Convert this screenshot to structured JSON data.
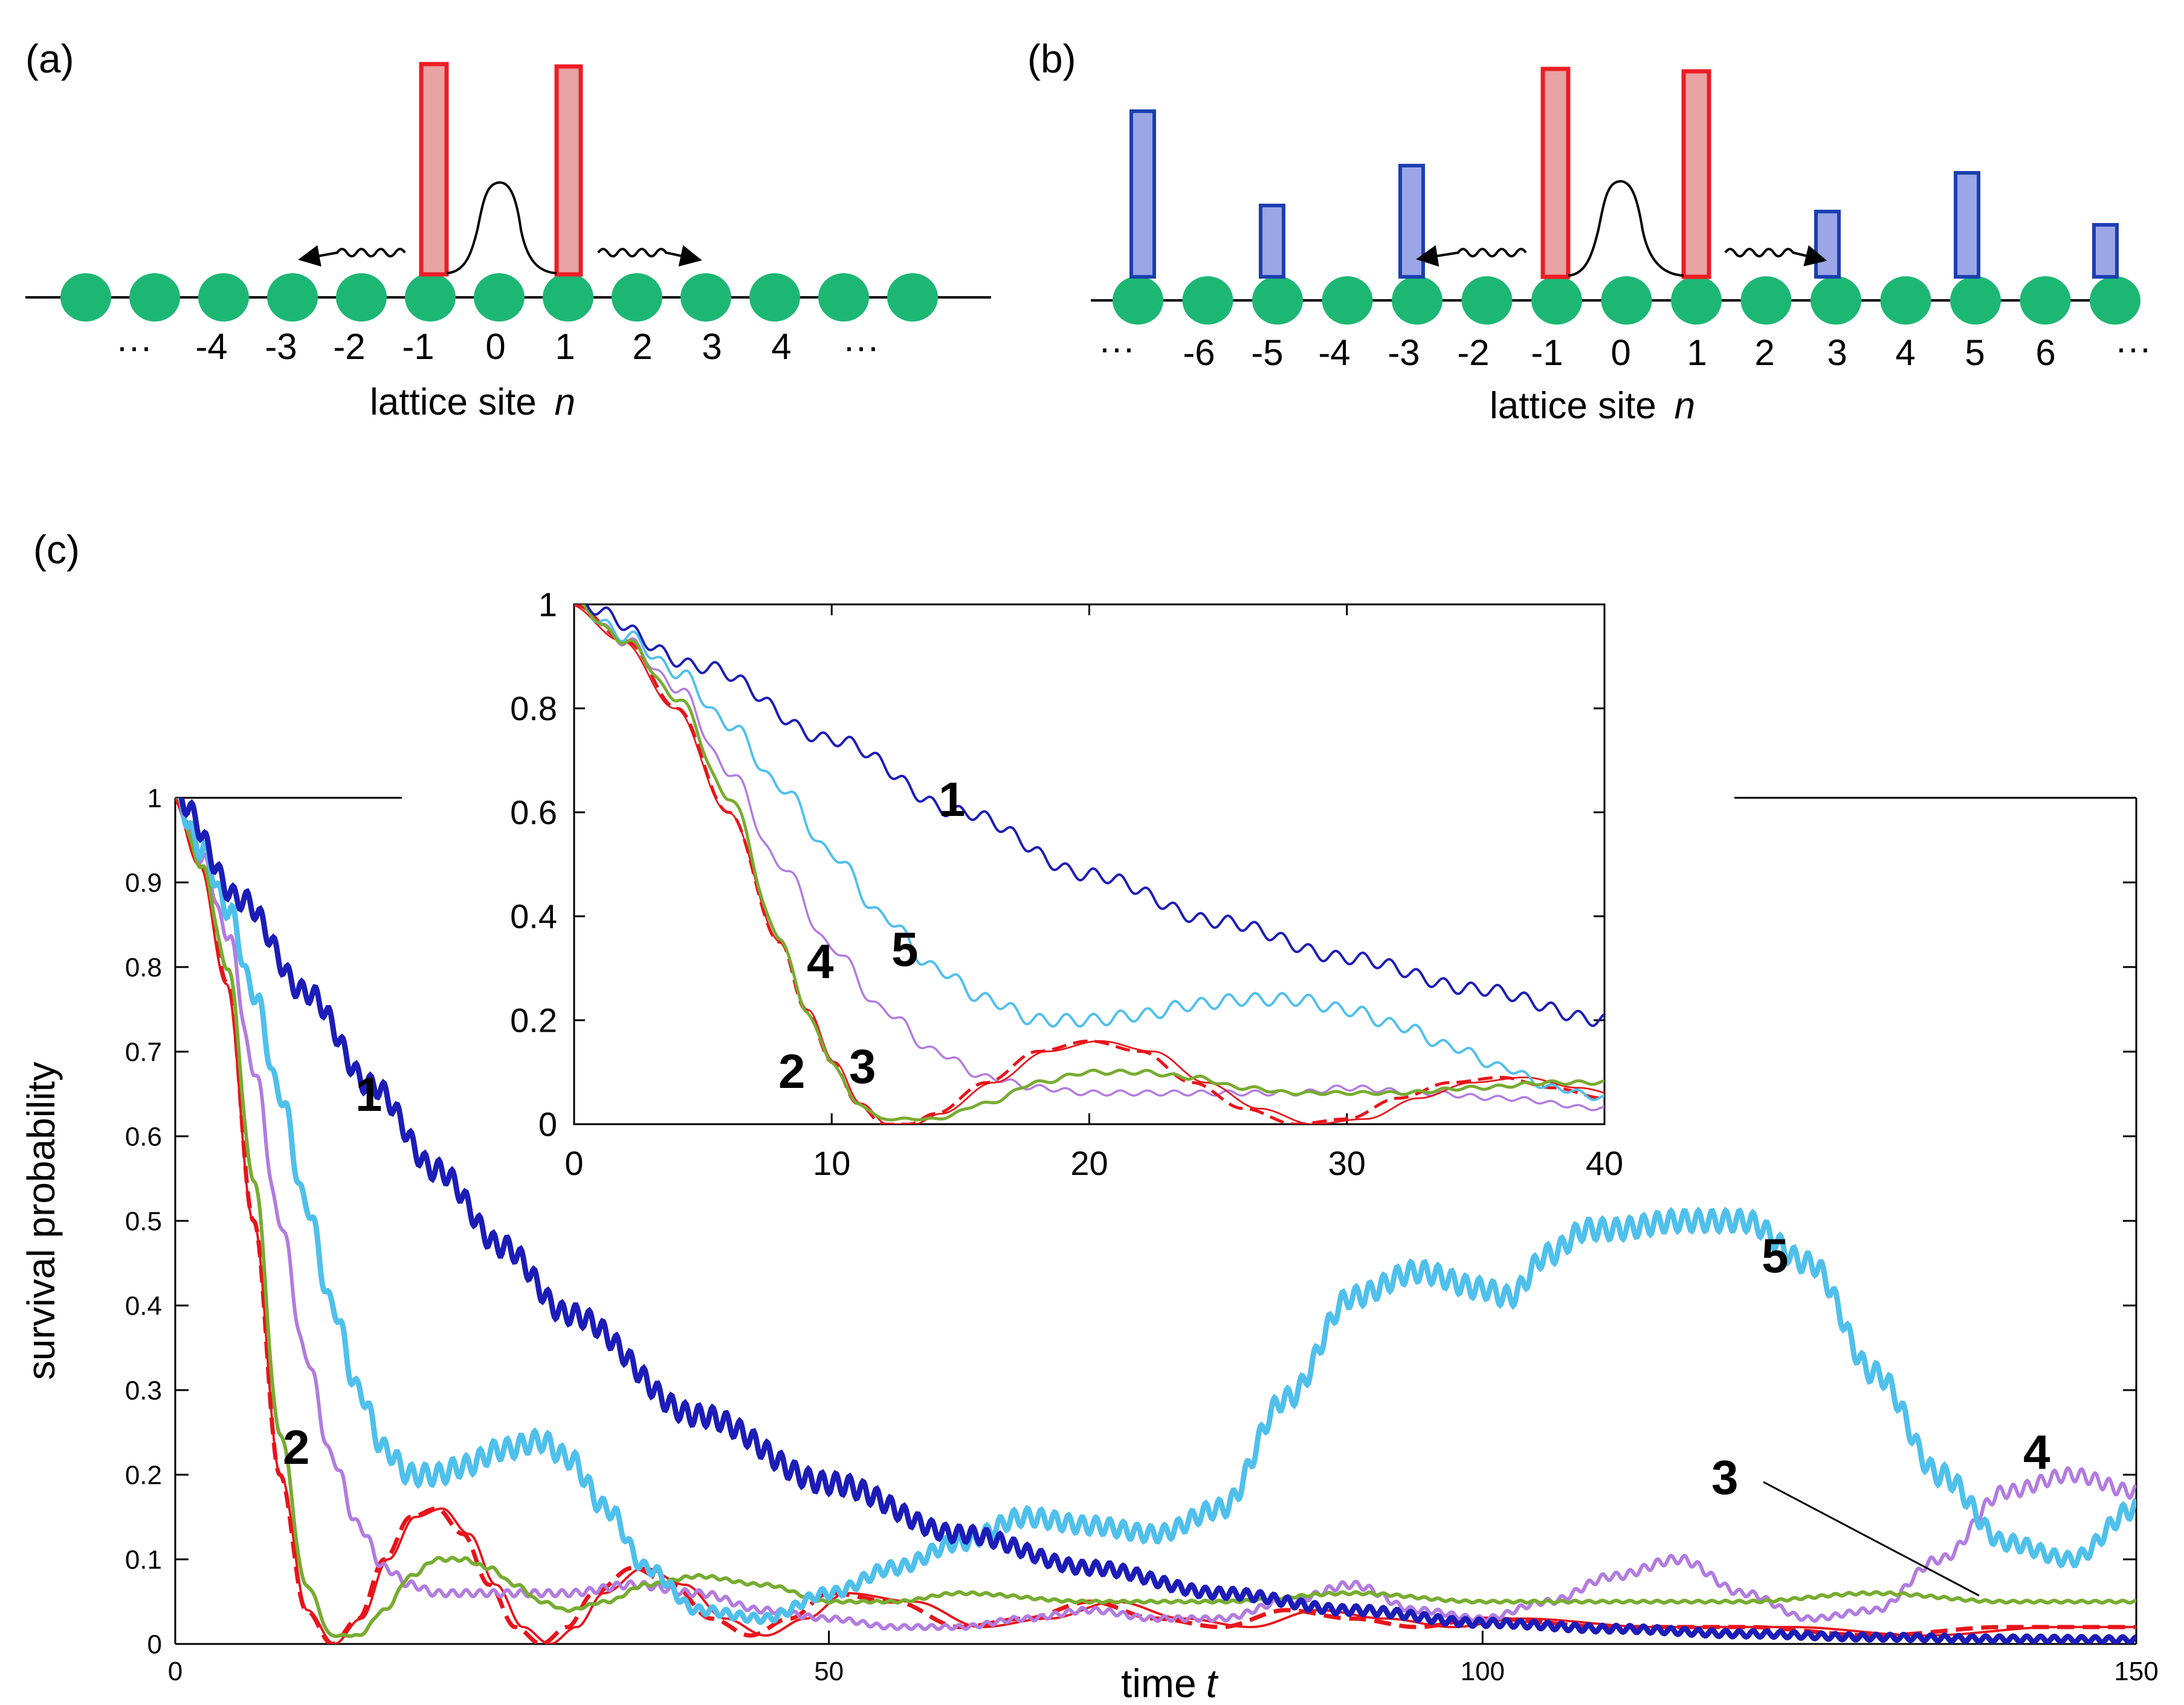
{
  "panels": {
    "a": {
      "label": "(a)",
      "site_labels": [
        "···",
        "-4",
        "-3",
        "-2",
        "-1",
        "0",
        "1",
        "2",
        "3",
        "4",
        "···"
      ],
      "axis_label": "lattice site",
      "axis_var": "n"
    },
    "b": {
      "label": "(b)",
      "site_labels": [
        "···",
        "-6",
        "-5",
        "-4",
        "-3",
        "-2",
        "-1",
        "0",
        "1",
        "2",
        "3",
        "4",
        "5",
        "6",
        "···"
      ],
      "axis_label": "lattice site",
      "axis_var": "n"
    },
    "c": {
      "label": "(c)"
    }
  },
  "colors": {
    "site": "#1DB774",
    "barrier_fill": "#E8A3A3",
    "barrier_edge": "#EE1C24",
    "disorder_fill": "#9BA6E6",
    "disorder_edge": "#1C3FB0",
    "curve1": "#1C1CB8",
    "curve2": "#E8141B",
    "curve3": "#77AC30",
    "curve4": "#B27BE0",
    "curve5": "#4FC0EC"
  },
  "chart_data": [
    {
      "id": "main",
      "type": "line",
      "xlabel": "time",
      "xlabel_var": "t",
      "ylabel": "survival probability",
      "xlim": [
        0,
        150
      ],
      "ylim": [
        0,
        1
      ],
      "xticks": [
        "0",
        "50",
        "100",
        "150"
      ],
      "yticks": [
        "0",
        "0.1",
        "0.2",
        "0.3",
        "0.4",
        "0.5",
        "0.6",
        "0.7",
        "0.8",
        "0.9",
        "1"
      ],
      "curve_labels": [
        "1",
        "2",
        "3",
        "4",
        "5"
      ],
      "series": [
        {
          "name": "1",
          "x": [
            0,
            5,
            10,
            15,
            20,
            25,
            30,
            40,
            50,
            60,
            70,
            80,
            90,
            100,
            110,
            120,
            130,
            140,
            150
          ],
          "y": [
            1,
            0.88,
            0.77,
            0.66,
            0.56,
            0.47,
            0.39,
            0.27,
            0.19,
            0.13,
            0.09,
            0.06,
            0.04,
            0.025,
            0.018,
            0.012,
            0.008,
            0.006,
            0.005
          ]
        },
        {
          "name": "2",
          "x": [
            0,
            2,
            4,
            6,
            8,
            10,
            12,
            14,
            16,
            18,
            20,
            22,
            24,
            26,
            28,
            30,
            32,
            35,
            38,
            41,
            44,
            47,
            50,
            55,
            60,
            65,
            70,
            75,
            80,
            85,
            90,
            95,
            100,
            110,
            120,
            130,
            140,
            150
          ],
          "y": [
            1,
            0.92,
            0.78,
            0.5,
            0.2,
            0.04,
            0.0,
            0.03,
            0.1,
            0.15,
            0.16,
            0.13,
            0.07,
            0.02,
            0.0,
            0.02,
            0.06,
            0.09,
            0.07,
            0.03,
            0.01,
            0.03,
            0.06,
            0.05,
            0.02,
            0.03,
            0.05,
            0.03,
            0.02,
            0.04,
            0.03,
            0.02,
            0.03,
            0.02,
            0.02,
            0.01,
            0.02,
            0.02
          ]
        },
        {
          "name": "3",
          "x": [
            0,
            2,
            4,
            6,
            8,
            10,
            12,
            14,
            16,
            18,
            20,
            22,
            24,
            26,
            28,
            30,
            33,
            36,
            40,
            45,
            50,
            55,
            60,
            70,
            80,
            90,
            100,
            110,
            120,
            130,
            140,
            150
          ],
          "y": [
            1,
            0.92,
            0.8,
            0.55,
            0.25,
            0.07,
            0.01,
            0.01,
            0.04,
            0.08,
            0.1,
            0.1,
            0.09,
            0.07,
            0.05,
            0.04,
            0.05,
            0.07,
            0.08,
            0.07,
            0.05,
            0.05,
            0.06,
            0.05,
            0.05,
            0.06,
            0.05,
            0.05,
            0.05,
            0.06,
            0.05,
            0.05
          ]
        },
        {
          "name": "4",
          "x": [
            0,
            2,
            4,
            6,
            8,
            10,
            12,
            14,
            16,
            18,
            20,
            25,
            30,
            35,
            40,
            45,
            50,
            55,
            60,
            65,
            70,
            75,
            80,
            85,
            90,
            95,
            100,
            105,
            110,
            115,
            120,
            125,
            130,
            135,
            140,
            145,
            150
          ],
          "y": [
            1,
            0.93,
            0.84,
            0.68,
            0.5,
            0.34,
            0.22,
            0.14,
            0.09,
            0.07,
            0.06,
            0.06,
            0.06,
            0.07,
            0.06,
            0.04,
            0.03,
            0.02,
            0.02,
            0.03,
            0.04,
            0.03,
            0.03,
            0.05,
            0.07,
            0.04,
            0.03,
            0.05,
            0.08,
            0.1,
            0.06,
            0.03,
            0.04,
            0.1,
            0.18,
            0.2,
            0.18
          ]
        },
        {
          "name": "5",
          "x": [
            0,
            2,
            4,
            6,
            8,
            10,
            12,
            14,
            16,
            18,
            20,
            22,
            25,
            28,
            30,
            33,
            36,
            40,
            45,
            50,
            55,
            60,
            65,
            70,
            75,
            80,
            85,
            90,
            95,
            100,
            102,
            105,
            108,
            110,
            115,
            120,
            125,
            130,
            135,
            140,
            145,
            150
          ],
          "y": [
            1,
            0.94,
            0.87,
            0.77,
            0.65,
            0.52,
            0.4,
            0.3,
            0.23,
            0.2,
            0.2,
            0.21,
            0.23,
            0.24,
            0.22,
            0.16,
            0.09,
            0.04,
            0.03,
            0.06,
            0.09,
            0.12,
            0.15,
            0.14,
            0.13,
            0.16,
            0.29,
            0.41,
            0.44,
            0.42,
            0.41,
            0.46,
            0.49,
            0.49,
            0.5,
            0.5,
            0.45,
            0.32,
            0.2,
            0.12,
            0.1,
            0.16
          ]
        }
      ]
    },
    {
      "id": "inset",
      "type": "line",
      "xlim": [
        0,
        40
      ],
      "ylim": [
        0,
        1
      ],
      "xticks": [
        "0",
        "10",
        "20",
        "30",
        "40"
      ],
      "yticks": [
        "0",
        "0.2",
        "0.4",
        "0.6",
        "0.8",
        "1"
      ],
      "curve_labels": [
        "1",
        "2",
        "3",
        "4",
        "5"
      ],
      "series": [
        {
          "name": "1",
          "x": [
            0,
            5,
            10,
            15,
            20,
            25,
            30,
            35,
            40
          ],
          "y": [
            1,
            0.88,
            0.74,
            0.6,
            0.48,
            0.39,
            0.32,
            0.26,
            0.2
          ]
        },
        {
          "name": "2",
          "x": [
            0,
            2,
            4,
            6,
            8,
            9,
            10,
            11,
            12,
            13,
            14,
            16,
            18,
            20,
            22,
            24,
            26,
            28,
            30,
            32,
            34,
            36,
            38,
            40
          ],
          "y": [
            1,
            0.93,
            0.8,
            0.6,
            0.35,
            0.22,
            0.12,
            0.04,
            0.0,
            0.0,
            0.02,
            0.08,
            0.14,
            0.16,
            0.14,
            0.08,
            0.03,
            0.0,
            0.01,
            0.05,
            0.08,
            0.09,
            0.07,
            0.05
          ]
        },
        {
          "name": "3",
          "x": [
            0,
            2,
            4,
            6,
            8,
            9,
            10,
            11,
            12,
            14,
            16,
            18,
            20,
            22,
            24,
            26,
            28,
            30,
            32,
            35,
            38,
            40
          ],
          "y": [
            1,
            0.93,
            0.82,
            0.63,
            0.36,
            0.22,
            0.12,
            0.04,
            0.01,
            0.01,
            0.04,
            0.08,
            0.1,
            0.1,
            0.09,
            0.07,
            0.06,
            0.06,
            0.06,
            0.07,
            0.08,
            0.08
          ]
        },
        {
          "name": "4",
          "x": [
            0,
            2,
            4,
            6,
            8,
            10,
            12,
            14,
            16,
            18,
            20,
            22,
            25,
            28,
            30,
            33,
            36,
            40
          ],
          "y": [
            1,
            0.93,
            0.84,
            0.68,
            0.5,
            0.34,
            0.22,
            0.14,
            0.09,
            0.07,
            0.06,
            0.06,
            0.06,
            0.06,
            0.07,
            0.06,
            0.05,
            0.03
          ]
        },
        {
          "name": "5",
          "x": [
            0,
            2,
            4,
            6,
            8,
            10,
            12,
            14,
            16,
            18,
            20,
            22,
            24,
            26,
            28,
            30,
            32,
            34,
            36,
            38,
            40
          ],
          "y": [
            1,
            0.94,
            0.87,
            0.77,
            0.65,
            0.52,
            0.4,
            0.3,
            0.24,
            0.2,
            0.2,
            0.21,
            0.23,
            0.24,
            0.24,
            0.22,
            0.19,
            0.15,
            0.11,
            0.07,
            0.05
          ]
        }
      ]
    }
  ]
}
